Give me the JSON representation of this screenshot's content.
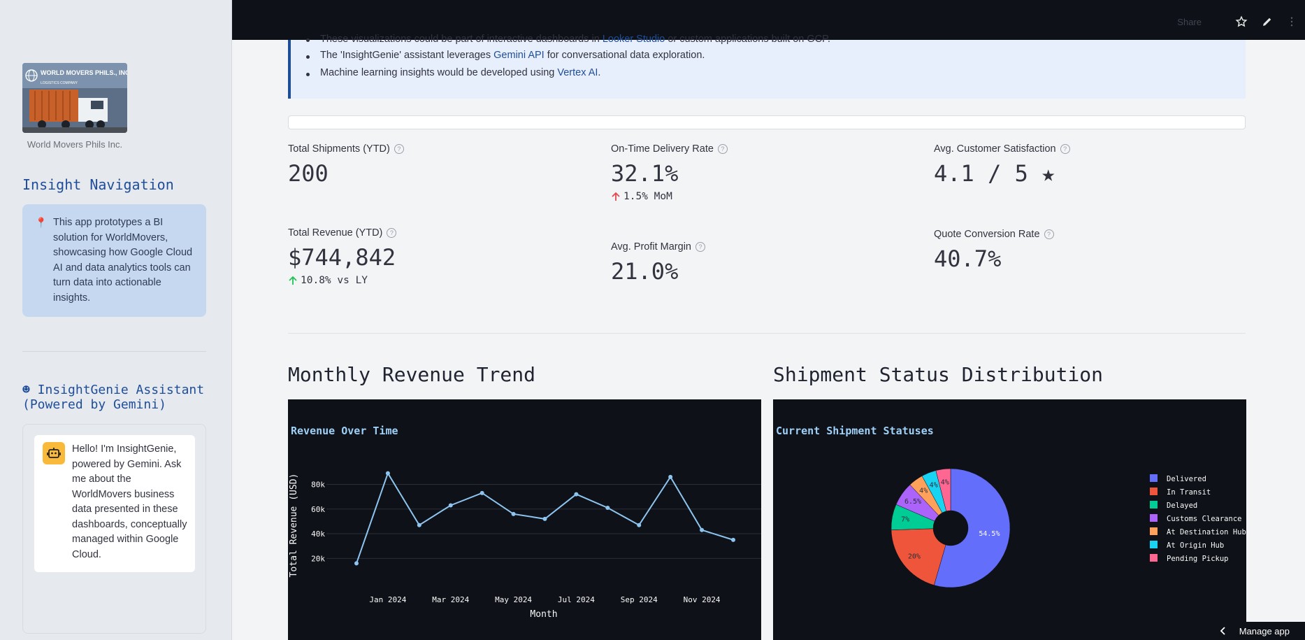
{
  "sidebar": {
    "logo_text": "WORLD MOVERS PHILS., INC.",
    "logo_subtext": "LOGISTICS COMPANY",
    "logo_caption": "World Movers Phils Inc.",
    "nav_title": "Insight Navigation",
    "info_text": "This app prototypes a BI solution for WorldMovers, showcasing how Google Cloud AI and data analytics tools can turn data into actionable insights.",
    "info_icon": "pushpin-icon",
    "assistant_title": "☻ InsightGenie Assistant (Powered by Gemini)",
    "assistant_message": "Hello! I'm InsightGenie, powered by Gemini. Ask me about the WorldMovers business data presented in these dashboards, conceptually managed within Google Cloud.",
    "assistant_icon": "robot-icon"
  },
  "topbar": {
    "share_label": "Share",
    "icons": [
      "star-icon",
      "pencil-icon",
      "more-vert-icon"
    ]
  },
  "banner": {
    "line1_pre": "These visualizations could be part of interactive dashboards in ",
    "line1_link": "Looker Studio",
    "line1_post": " or custom applications built on GCP.",
    "line2_pre": "The 'InsightGenie' assistant leverages ",
    "line2_link": "Gemini API",
    "line2_post": " for conversational data exploration.",
    "line3_pre": "Machine learning insights would be developed using ",
    "line3_link": "Vertex AI",
    "line3_post": "."
  },
  "metrics": {
    "total_shipments": {
      "label": "Total Shipments (YTD)",
      "value": "200"
    },
    "on_time": {
      "label": "On-Time Delivery Rate",
      "value": "32.1%",
      "delta": "1.5% MoM"
    },
    "csat": {
      "label": "Avg. Customer Satisfaction",
      "value": "4.1 / 5 ★"
    },
    "total_revenue": {
      "label": "Total Revenue (YTD)",
      "value": "$744,842",
      "delta": "10.8% vs LY"
    },
    "profit_margin": {
      "label": "Avg. Profit Margin",
      "value": "21.0%"
    },
    "quote_conversion": {
      "label": "Quote Conversion Rate",
      "value": "40.7%"
    }
  },
  "colors": {
    "delta_red": "#e5484d",
    "delta_green": "#21c354",
    "line": "#8ec5f0",
    "accent": "#1f4e99"
  },
  "sections": {
    "revenue_title": "Monthly Revenue Trend",
    "status_title": "Shipment Status Distribution"
  },
  "footer": {
    "manage_app_label": "Manage app"
  },
  "chart_data": [
    {
      "type": "line",
      "title": "Revenue Over Time",
      "xlabel": "Month",
      "ylabel": "Total Revenue (USD)",
      "x": [
        "2023-12",
        "2024-01",
        "2024-02",
        "2024-03",
        "2024-04",
        "2024-05",
        "2024-06",
        "2024-07",
        "2024-08",
        "2024-09",
        "2024-10",
        "2024-11",
        "2024-12"
      ],
      "y": [
        16000,
        89000,
        47000,
        63000,
        73000,
        56000,
        52000,
        72000,
        61000,
        47000,
        86000,
        43000,
        35000
      ],
      "xtick_labels": [
        "Jan 2024",
        "Mar 2024",
        "May 2024",
        "Jul 2024",
        "Sep 2024",
        "Nov 2024"
      ],
      "ytick_labels": [
        "20k",
        "40k",
        "60k",
        "80k"
      ],
      "ylim": [
        10000,
        95000
      ],
      "grid": true
    },
    {
      "type": "pie",
      "title": "Current Shipment Statuses",
      "labels": [
        "Delivered",
        "In Transit",
        "Delayed",
        "Customs Clearance",
        "At Destination Hub",
        "At Origin Hub",
        "Pending Pickup"
      ],
      "values": [
        54.5,
        20,
        7,
        6.5,
        4,
        4,
        4
      ],
      "value_labels": [
        "54.5%",
        "20%",
        "7%",
        "6.5%",
        "4%",
        "4%",
        "4%"
      ],
      "colors": [
        "#636efa",
        "#ef553b",
        "#00cc96",
        "#ab63fa",
        "#ffa15a",
        "#19d3f3",
        "#ff6692"
      ],
      "legend": "right",
      "hole": true
    }
  ]
}
